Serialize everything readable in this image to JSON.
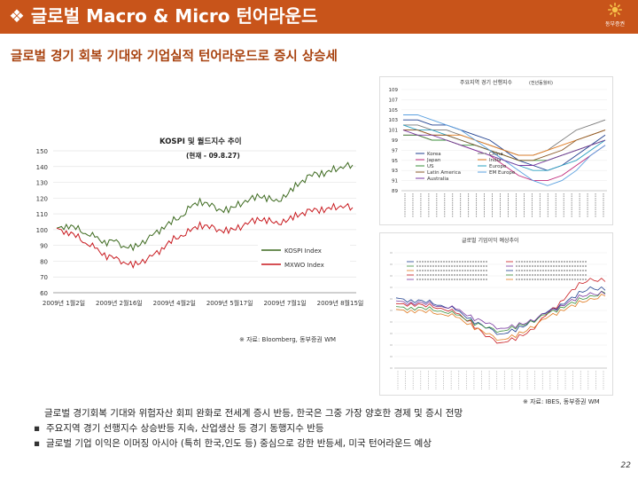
{
  "header": {
    "bullet": "❖",
    "title": "글로벌 Macro & Micro 턴어라운드",
    "logo_text": "동부증권"
  },
  "subtitle": "글로벌 경기 회복 기대와 기업실적 턴어라운드로 증시 상승세",
  "colors": {
    "header_bg": "#c8541a",
    "subtitle": "#a8420f"
  },
  "kospi_chart": {
    "title": "KOSPI 및 월드지수 추이",
    "subtitle": "(현재 - 09.8.27)",
    "source": "※ 자료: Bloomberg, 동부증권 WM",
    "chart_data": {
      "type": "line",
      "title": "KOSPI 및 월드지수 추이",
      "ylim": [
        60,
        150
      ],
      "yticks": [
        60,
        70,
        80,
        90,
        100,
        110,
        120,
        130,
        140,
        150
      ],
      "xtick_labels": [
        "2009년 1월2일",
        "2009년 2월16일",
        "2009년 4월2일",
        "2009년 5월17일",
        "2009년 7월1일",
        "2009년 8월15일"
      ],
      "series": [
        {
          "name": "KOSPI Index",
          "color": "#3d6a1f",
          "values": [
            100,
            103,
            101,
            98,
            95,
            92,
            93,
            90,
            88,
            92,
            96,
            101,
            105,
            108,
            114,
            118,
            116,
            113,
            112,
            116,
            118,
            122,
            120,
            118,
            121,
            128,
            132,
            136,
            135,
            138,
            140,
            141
          ]
        },
        {
          "name": "MXWO Index",
          "color": "#c8191e",
          "values": [
            100,
            99,
            96,
            92,
            88,
            84,
            82,
            80,
            77,
            80,
            83,
            88,
            93,
            96,
            99,
            103,
            102,
            100,
            99,
            101,
            104,
            107,
            106,
            104,
            105,
            109,
            111,
            113,
            112,
            114,
            115,
            114
          ]
        }
      ]
    }
  },
  "lead_chart": {
    "title": "주요지역 경기 선행지수",
    "title_note": "(전년동월비)",
    "chart_data": {
      "type": "line",
      "title": "주요지역 경기 선행지수",
      "ylim": [
        89,
        109
      ],
      "yticks": [
        89,
        91,
        93,
        95,
        97,
        99,
        101,
        103,
        105,
        107,
        109
      ],
      "legend": [
        "Korea",
        "China",
        "Japan",
        "India",
        "US",
        "Europe",
        "Latin America",
        "EM Europe",
        "Australia"
      ],
      "series": [
        {
          "name": "Korea",
          "color": "#1f3f8f",
          "values": [
            103,
            103,
            102,
            102,
            101,
            100,
            99,
            97,
            95,
            94,
            93,
            94,
            96,
            98,
            100
          ]
        },
        {
          "name": "China",
          "color": "#7a7a7a",
          "values": [
            102,
            102,
            101,
            101,
            100,
            99,
            98,
            97,
            96,
            96,
            97,
            99,
            101,
            102,
            103
          ]
        },
        {
          "name": "Japan",
          "color": "#c0297a",
          "values": [
            100,
            100,
            99,
            99,
            98,
            97,
            96,
            94,
            92,
            91,
            91,
            92,
            94,
            96,
            98
          ]
        },
        {
          "name": "India",
          "color": "#e07a1f",
          "values": [
            101,
            101,
            100,
            100,
            100,
            99,
            98,
            97,
            96,
            96,
            97,
            98,
            99,
            100,
            101
          ]
        },
        {
          "name": "US",
          "color": "#3a8f3a",
          "values": [
            100,
            100,
            99,
            99,
            98,
            98,
            97,
            96,
            95,
            95,
            95,
            96,
            97,
            98,
            99
          ]
        },
        {
          "name": "Europe",
          "color": "#2aa0c0",
          "values": [
            102,
            101,
            101,
            100,
            99,
            98,
            97,
            95,
            94,
            93,
            93,
            94,
            95,
            97,
            99
          ]
        },
        {
          "name": "Latin America",
          "color": "#8a5a2a",
          "values": [
            101,
            101,
            100,
            100,
            99,
            98,
            97,
            96,
            95,
            95,
            96,
            97,
            99,
            100,
            101
          ]
        },
        {
          "name": "EM Europe",
          "color": "#5aa0e0",
          "values": [
            104,
            104,
            103,
            102,
            101,
            99,
            97,
            95,
            93,
            91,
            90,
            91,
            93,
            96,
            98
          ]
        },
        {
          "name": "Australia",
          "color": "#7a3aa0",
          "values": [
            101,
            100,
            100,
            99,
            98,
            97,
            96,
            95,
            94,
            94,
            95,
            96,
            97,
            98,
            99
          ]
        }
      ]
    }
  },
  "earnings_chart": {
    "title": "글로벌 기업이익 예상추이",
    "source": "※ 자료: IBES, 동부증권 WM",
    "chart_data": {
      "type": "line",
      "title": "글로벌 기업이익 예상추이",
      "ylim": [
        -100,
        100
      ],
      "series": [
        {
          "name": "Series 1",
          "color": "#1f3f8f",
          "values": [
            20,
            18,
            15,
            10,
            0,
            -15,
            -30,
            -40,
            -35,
            -20,
            -5,
            10,
            25,
            40,
            35
          ]
        },
        {
          "name": "Series 2",
          "color": "#c8191e",
          "values": [
            10,
            12,
            8,
            5,
            -5,
            -20,
            -45,
            -55,
            -50,
            -35,
            -10,
            15,
            40,
            55,
            50
          ]
        },
        {
          "name": "Series 3",
          "color": "#3a8f3a",
          "values": [
            5,
            5,
            3,
            0,
            -8,
            -18,
            -30,
            -35,
            -30,
            -20,
            -8,
            5,
            15,
            25,
            30
          ]
        },
        {
          "name": "Series 4",
          "color": "#7a3aa0",
          "values": [
            15,
            14,
            12,
            8,
            2,
            -10,
            -22,
            -30,
            -28,
            -18,
            -6,
            8,
            20,
            30,
            28
          ]
        },
        {
          "name": "Series 5",
          "color": "#e07a1f",
          "values": [
            0,
            0,
            -2,
            -5,
            -12,
            -25,
            -40,
            -50,
            -45,
            -30,
            -15,
            0,
            10,
            20,
            25
          ]
        }
      ]
    }
  },
  "bottom_text": {
    "intro": "글로벌 경기회복 기대와 위험자산 회피 완화로 전세계 증시 반등, 한국은 그중 가장 양호한 경제 및 증시 전망",
    "bullets": [
      "주요지역 경기 선행지수 상승반등 지속, 산업생산 등 경기 동행지수 반등",
      "글로벌 기업 이익은 이머징 아시아 (특히 한국,인도 등) 중심으로 강한 반등세, 미국 턴어라운드 예상"
    ],
    "bullet_symbol": "▪"
  },
  "page_number": "22"
}
